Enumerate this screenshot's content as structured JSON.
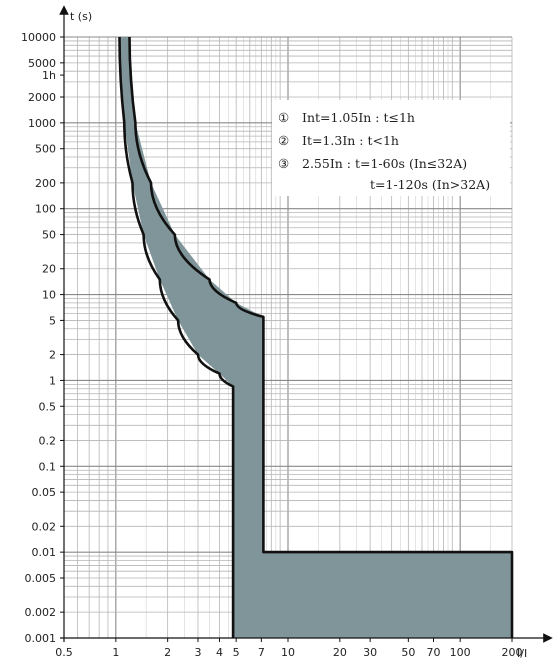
{
  "chart_data": {
    "type": "area",
    "x_scale": "log",
    "y_scale": "log",
    "xlim": [
      0.5,
      200
    ],
    "ylim": [
      0.001,
      10000
    ],
    "xlabel": "I/I",
    "ylabel": "t (s)",
    "grid": true,
    "x_ticks": [
      {
        "value": 0.5,
        "label": "0.5"
      },
      {
        "value": 1,
        "label": "1"
      },
      {
        "value": 2,
        "label": "2"
      },
      {
        "value": 3,
        "label": "3"
      },
      {
        "value": 4,
        "label": "4"
      },
      {
        "value": 5,
        "label": "5"
      },
      {
        "value": 7,
        "label": "7"
      },
      {
        "value": 10,
        "label": "10"
      },
      {
        "value": 20,
        "label": "20"
      },
      {
        "value": 30,
        "label": "30"
      },
      {
        "value": 50,
        "label": "50"
      },
      {
        "value": 70,
        "label": "70"
      },
      {
        "value": 100,
        "label": "100"
      },
      {
        "value": 200,
        "label": "200"
      }
    ],
    "y_ticks": [
      {
        "value": 10000,
        "label": "10000"
      },
      {
        "value": 5000,
        "label": "5000"
      },
      {
        "value": 3600,
        "label": "1h"
      },
      {
        "value": 2000,
        "label": "2000"
      },
      {
        "value": 1000,
        "label": "1000"
      },
      {
        "value": 500,
        "label": "500"
      },
      {
        "value": 200,
        "label": "200"
      },
      {
        "value": 100,
        "label": "100"
      },
      {
        "value": 50,
        "label": "50"
      },
      {
        "value": 20,
        "label": "20"
      },
      {
        "value": 10,
        "label": "10"
      },
      {
        "value": 5,
        "label": "5"
      },
      {
        "value": 2,
        "label": "2"
      },
      {
        "value": 1,
        "label": "1"
      },
      {
        "value": 0.5,
        "label": "0.5"
      },
      {
        "value": 0.2,
        "label": "0.2"
      },
      {
        "value": 0.1,
        "label": "0.1"
      },
      {
        "value": 0.05,
        "label": "0.05"
      },
      {
        "value": 0.02,
        "label": "0.02"
      },
      {
        "value": 0.01,
        "label": "0.01"
      },
      {
        "value": 0.005,
        "label": "0.005"
      },
      {
        "value": 0.002,
        "label": "0.002"
      },
      {
        "value": 0.001,
        "label": "0.001"
      }
    ],
    "band": {
      "fill_color": "#7f9599",
      "stroke_color": "#111111",
      "lower_curve": [
        {
          "x": 1.05,
          "y": 10000
        },
        {
          "x": 1.12,
          "y": 1000
        },
        {
          "x": 1.25,
          "y": 200
        },
        {
          "x": 1.45,
          "y": 50
        },
        {
          "x": 1.8,
          "y": 15
        },
        {
          "x": 2.3,
          "y": 5
        },
        {
          "x": 3.0,
          "y": 2
        },
        {
          "x": 4.0,
          "y": 1.2
        },
        {
          "x": 4.8,
          "y": 0.85
        },
        {
          "x": 4.8,
          "y": 0.001
        }
      ],
      "upper_curve": [
        {
          "x": 1.2,
          "y": 10000
        },
        {
          "x": 1.3,
          "y": 1000
        },
        {
          "x": 1.6,
          "y": 200
        },
        {
          "x": 2.2,
          "y": 50
        },
        {
          "x": 3.5,
          "y": 15
        },
        {
          "x": 5.0,
          "y": 8
        },
        {
          "x": 7.2,
          "y": 5.5
        },
        {
          "x": 7.2,
          "y": 0.01
        },
        {
          "x": 200,
          "y": 0.01
        },
        {
          "x": 200,
          "y": 0.001
        }
      ]
    },
    "legend": {
      "placement": "top-right",
      "lines": [
        {
          "marker": "①",
          "text": "Int=1.05In : t≤1h"
        },
        {
          "marker": "②",
          "text": "It=1.3In : t<1h"
        },
        {
          "marker": "③",
          "text": "2.55In : t=1-60s (In≤32A)"
        },
        {
          "marker": "",
          "text": "t=1-120s (In>32A)"
        }
      ]
    }
  }
}
